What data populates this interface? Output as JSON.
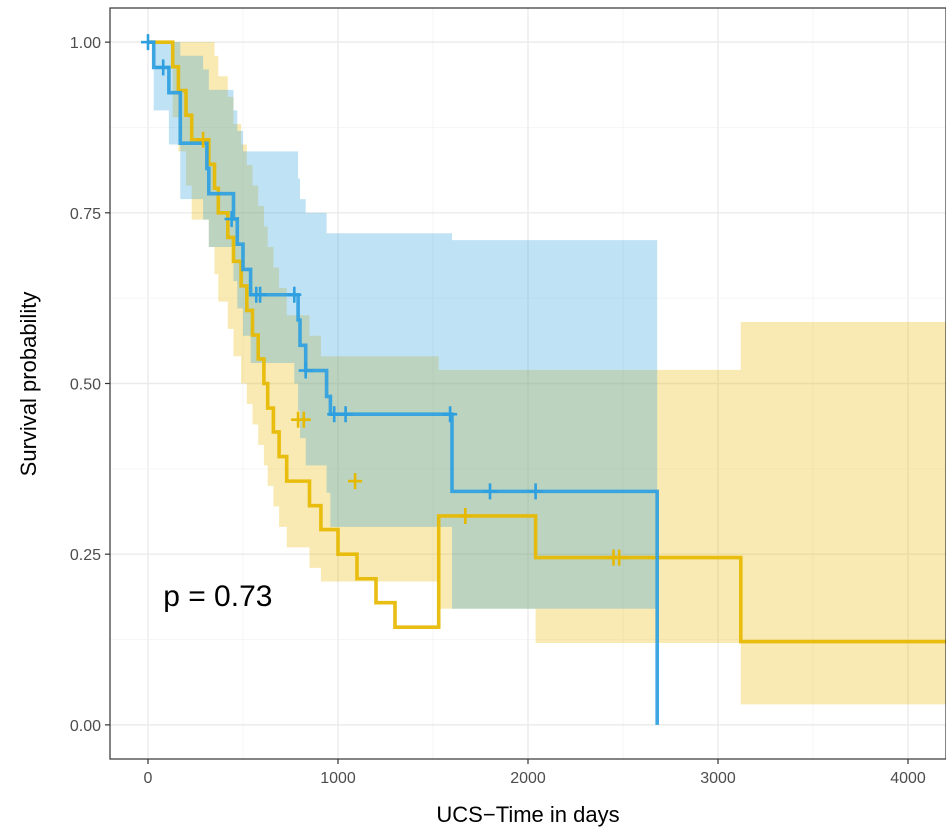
{
  "chart_data": {
    "type": "line",
    "subtype": "kaplan-meier",
    "title": "",
    "xlabel": "UCS−Time in days",
    "ylabel": "Survival probability",
    "xlim": [
      -200,
      4200
    ],
    "ylim": [
      -0.05,
      1.05
    ],
    "x_ticks": [
      0,
      1000,
      2000,
      3000,
      4000
    ],
    "x_tick_labels": [
      "0",
      "1000",
      "2000",
      "3000",
      "4000"
    ],
    "y_ticks": [
      0,
      0.25,
      0.5,
      0.75,
      1.0
    ],
    "y_tick_labels": [
      "0.00",
      "0.25",
      "0.50",
      "0.75",
      "1.00"
    ],
    "grid": true,
    "legend": "none",
    "annotation": {
      "text": "p = 0.73",
      "x": 80,
      "y": 0.19
    },
    "series": [
      {
        "color": "#E7B800",
        "steps": [
          [
            0,
            1.0
          ],
          [
            130,
            0.964
          ],
          [
            160,
            0.929
          ],
          [
            200,
            0.893
          ],
          [
            230,
            0.857
          ],
          [
            320,
            0.821
          ],
          [
            350,
            0.786
          ],
          [
            370,
            0.75
          ],
          [
            420,
            0.714
          ],
          [
            450,
            0.679
          ],
          [
            490,
            0.643
          ],
          [
            520,
            0.607
          ],
          [
            550,
            0.571
          ],
          [
            580,
            0.536
          ],
          [
            610,
            0.5
          ],
          [
            630,
            0.464
          ],
          [
            660,
            0.429
          ],
          [
            690,
            0.393
          ],
          [
            730,
            0.357
          ],
          [
            850,
            0.321
          ],
          [
            910,
            0.286
          ],
          [
            1000,
            0.25
          ],
          [
            1100,
            0.214
          ],
          [
            1200,
            0.179
          ],
          [
            1300,
            0.143
          ],
          [
            1530,
            0.306
          ],
          [
            1670,
            0.306
          ],
          [
            2040,
            0.245
          ],
          [
            3120,
            0.122
          ],
          [
            4200,
            0.122
          ]
        ],
        "upper": [
          [
            0,
            1.0
          ],
          [
            130,
            1.0
          ],
          [
            160,
            1.0
          ],
          [
            230,
            1.0
          ],
          [
            320,
            1.0
          ],
          [
            350,
            0.98
          ],
          [
            370,
            0.95
          ],
          [
            420,
            0.92
          ],
          [
            450,
            0.88
          ],
          [
            490,
            0.85
          ],
          [
            520,
            0.82
          ],
          [
            550,
            0.79
          ],
          [
            580,
            0.76
          ],
          [
            610,
            0.73
          ],
          [
            630,
            0.7
          ],
          [
            660,
            0.67
          ],
          [
            690,
            0.64
          ],
          [
            730,
            0.6
          ],
          [
            850,
            0.57
          ],
          [
            910,
            0.54
          ],
          [
            1530,
            0.52
          ],
          [
            2040,
            0.52
          ],
          [
            3120,
            0.59
          ],
          [
            4200,
            0.59
          ]
        ],
        "lower": [
          [
            0,
            1.0
          ],
          [
            130,
            0.89
          ],
          [
            160,
            0.84
          ],
          [
            200,
            0.79
          ],
          [
            230,
            0.74
          ],
          [
            320,
            0.7
          ],
          [
            350,
            0.66
          ],
          [
            370,
            0.62
          ],
          [
            420,
            0.58
          ],
          [
            450,
            0.54
          ],
          [
            490,
            0.5
          ],
          [
            520,
            0.47
          ],
          [
            550,
            0.44
          ],
          [
            580,
            0.41
          ],
          [
            610,
            0.38
          ],
          [
            630,
            0.35
          ],
          [
            660,
            0.32
          ],
          [
            690,
            0.29
          ],
          [
            730,
            0.26
          ],
          [
            850,
            0.23
          ],
          [
            910,
            0.21
          ],
          [
            1530,
            0.17
          ],
          [
            1670,
            0.17
          ],
          [
            2040,
            0.12
          ],
          [
            3120,
            0.03
          ],
          [
            4200,
            0.03
          ]
        ],
        "censors": [
          [
            290,
            0.857
          ],
          [
            790,
            0.447
          ],
          [
            820,
            0.447
          ],
          [
            1090,
            0.357
          ],
          [
            1670,
            0.306
          ],
          [
            2450,
            0.245
          ],
          [
            2480,
            0.245
          ]
        ]
      },
      {
        "color": "#2E9FDF",
        "steps": [
          [
            0,
            1.0
          ],
          [
            30,
            0.963
          ],
          [
            110,
            0.926
          ],
          [
            170,
            0.852
          ],
          [
            290,
            0.852
          ],
          [
            310,
            0.815
          ],
          [
            320,
            0.778
          ],
          [
            450,
            0.741
          ],
          [
            470,
            0.704
          ],
          [
            500,
            0.667
          ],
          [
            540,
            0.63
          ],
          [
            560,
            0.63
          ],
          [
            770,
            0.63
          ],
          [
            790,
            0.593
          ],
          [
            800,
            0.556
          ],
          [
            830,
            0.519
          ],
          [
            940,
            0.481
          ],
          [
            960,
            0.455
          ],
          [
            1590,
            0.455
          ],
          [
            1600,
            0.342
          ],
          [
            2040,
            0.342
          ],
          [
            2680,
            0.342
          ],
          [
            2680,
            0.0
          ]
        ],
        "upper": [
          [
            0,
            1.0
          ],
          [
            30,
            1.0
          ],
          [
            110,
            1.0
          ],
          [
            170,
            0.98
          ],
          [
            290,
            0.96
          ],
          [
            320,
            0.93
          ],
          [
            450,
            0.9
          ],
          [
            470,
            0.87
          ],
          [
            500,
            0.84
          ],
          [
            540,
            0.84
          ],
          [
            770,
            0.84
          ],
          [
            790,
            0.8
          ],
          [
            800,
            0.77
          ],
          [
            830,
            0.75
          ],
          [
            940,
            0.72
          ],
          [
            960,
            0.72
          ],
          [
            1590,
            0.72
          ],
          [
            1600,
            0.71
          ],
          [
            2680,
            0.71
          ]
        ],
        "lower": [
          [
            0,
            1.0
          ],
          [
            30,
            0.9
          ],
          [
            110,
            0.85
          ],
          [
            170,
            0.77
          ],
          [
            290,
            0.74
          ],
          [
            320,
            0.7
          ],
          [
            450,
            0.65
          ],
          [
            470,
            0.61
          ],
          [
            500,
            0.57
          ],
          [
            540,
            0.53
          ],
          [
            560,
            0.53
          ],
          [
            770,
            0.5
          ],
          [
            790,
            0.46
          ],
          [
            800,
            0.42
          ],
          [
            830,
            0.38
          ],
          [
            940,
            0.34
          ],
          [
            960,
            0.29
          ],
          [
            1590,
            0.29
          ],
          [
            1600,
            0.17
          ],
          [
            2040,
            0.17
          ],
          [
            2680,
            0.17
          ]
        ],
        "censors": [
          [
            0,
            1.0
          ],
          [
            80,
            0.963
          ],
          [
            440,
            0.741
          ],
          [
            570,
            0.63
          ],
          [
            590,
            0.63
          ],
          [
            770,
            0.63
          ],
          [
            830,
            0.519
          ],
          [
            980,
            0.455
          ],
          [
            1040,
            0.455
          ],
          [
            1590,
            0.455
          ],
          [
            1800,
            0.342
          ],
          [
            2040,
            0.342
          ]
        ]
      }
    ]
  }
}
